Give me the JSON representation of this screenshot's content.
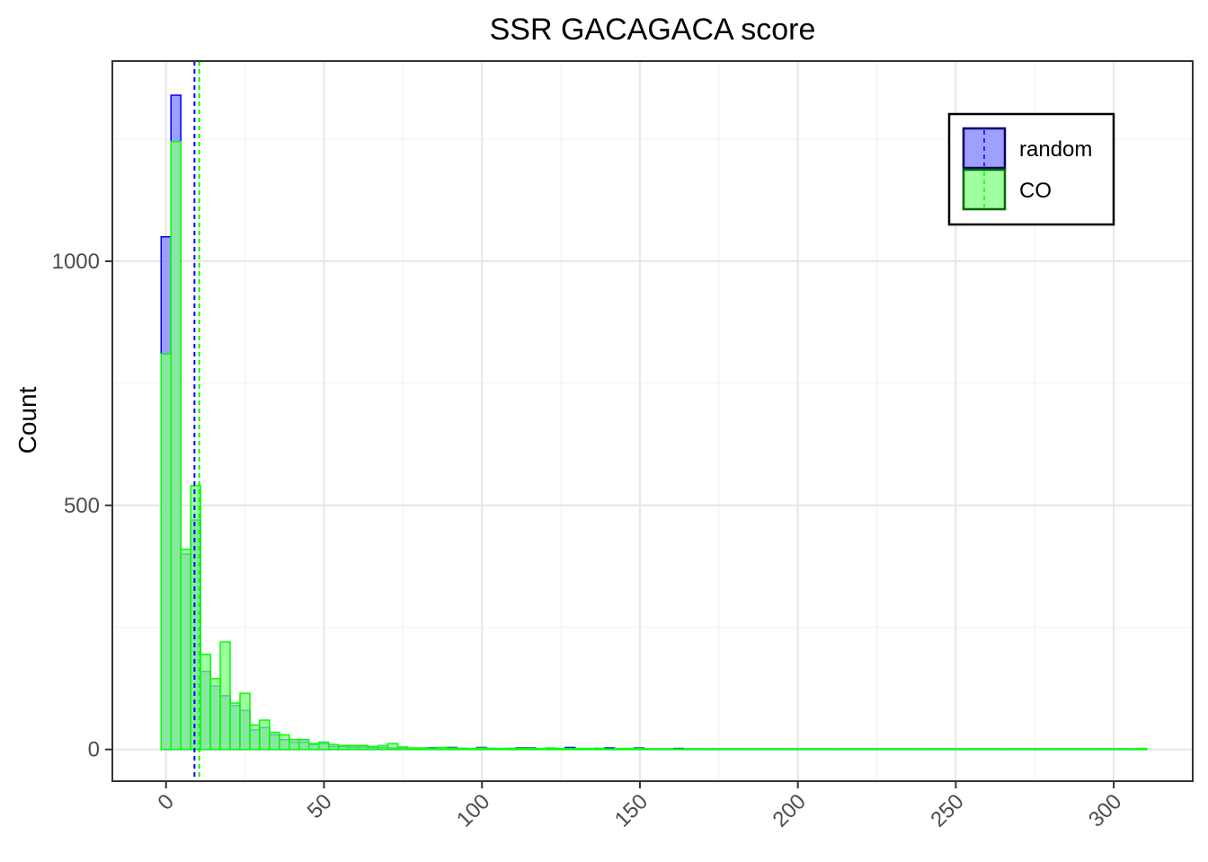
{
  "chart_data": {
    "type": "bar",
    "subtype": "overlaid-histogram",
    "title": "SSR GACAGACA score",
    "xlabel": "",
    "ylabel": "Count",
    "xlim": [
      -17,
      325
    ],
    "ylim": [
      -65,
      1410
    ],
    "x_ticks": [
      0,
      50,
      100,
      150,
      200,
      250,
      300
    ],
    "x_tick_labels": [
      "0",
      "50",
      "100",
      "150",
      "200",
      "250",
      "300"
    ],
    "x_minor_ticks": [
      25,
      75,
      125,
      175,
      225,
      275
    ],
    "y_ticks": [
      0,
      500,
      1000
    ],
    "y_tick_labels": [
      "0",
      "500",
      "1000"
    ],
    "y_minor_ticks": [
      250,
      750,
      1250
    ],
    "grid": true,
    "legend_position": "top-right",
    "bin_width": 3.12,
    "bin_start": -1.56,
    "series": [
      {
        "name": "random",
        "color": "#0000ff",
        "fill": "#7f7fff",
        "mean": 9.0,
        "values": [
          1050,
          1340,
          400,
          470,
          160,
          130,
          110,
          90,
          80,
          40,
          45,
          30,
          20,
          15,
          15,
          10,
          12,
          6,
          6,
          5,
          5,
          4,
          4,
          3,
          3,
          2,
          2,
          3,
          1,
          4,
          2,
          1,
          4,
          2,
          1,
          2,
          3,
          3,
          1,
          2,
          1,
          4,
          1,
          1,
          2,
          3,
          1,
          1,
          3,
          1,
          1,
          1,
          2,
          1,
          1,
          1,
          1,
          1,
          1,
          1,
          1,
          1,
          1,
          1,
          1,
          1,
          1,
          1,
          1,
          1,
          1,
          1,
          1,
          1,
          1,
          1,
          1,
          1,
          1,
          1,
          1,
          1,
          1,
          1,
          1,
          1,
          1,
          1,
          1,
          1,
          1,
          1,
          1,
          1,
          1,
          1,
          1,
          1,
          1,
          1
        ]
      },
      {
        "name": "CO",
        "color": "#00ff00",
        "fill": "#80ff80",
        "mean": 10.5,
        "values": [
          810,
          1245,
          410,
          540,
          195,
          145,
          220,
          95,
          115,
          50,
          60,
          35,
          30,
          20,
          20,
          12,
          15,
          10,
          8,
          8,
          8,
          6,
          8,
          12,
          5,
          3,
          3,
          2,
          4,
          3,
          2,
          2,
          3,
          2,
          2,
          2,
          2,
          2,
          2,
          3,
          2,
          2,
          2,
          2,
          2,
          1,
          2,
          2,
          2,
          1,
          1,
          1,
          1,
          1,
          1,
          1,
          1,
          1,
          1,
          1,
          1,
          1,
          1,
          1,
          1,
          1,
          1,
          1,
          1,
          1,
          1,
          1,
          1,
          1,
          1,
          1,
          1,
          1,
          1,
          1,
          1,
          1,
          1,
          1,
          1,
          1,
          1,
          1,
          1,
          1,
          1,
          1,
          1,
          1,
          1,
          1,
          1,
          1,
          1,
          2
        ]
      }
    ]
  }
}
